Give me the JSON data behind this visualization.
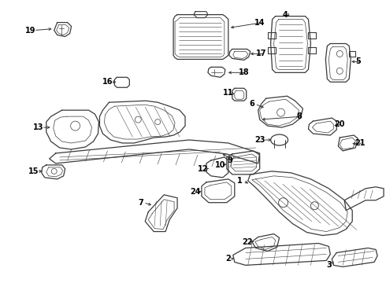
{
  "background_color": "#ffffff",
  "line_color": "#3a3a3a",
  "text_color": "#000000",
  "fig_width": 4.9,
  "fig_height": 3.6,
  "dpi": 100
}
